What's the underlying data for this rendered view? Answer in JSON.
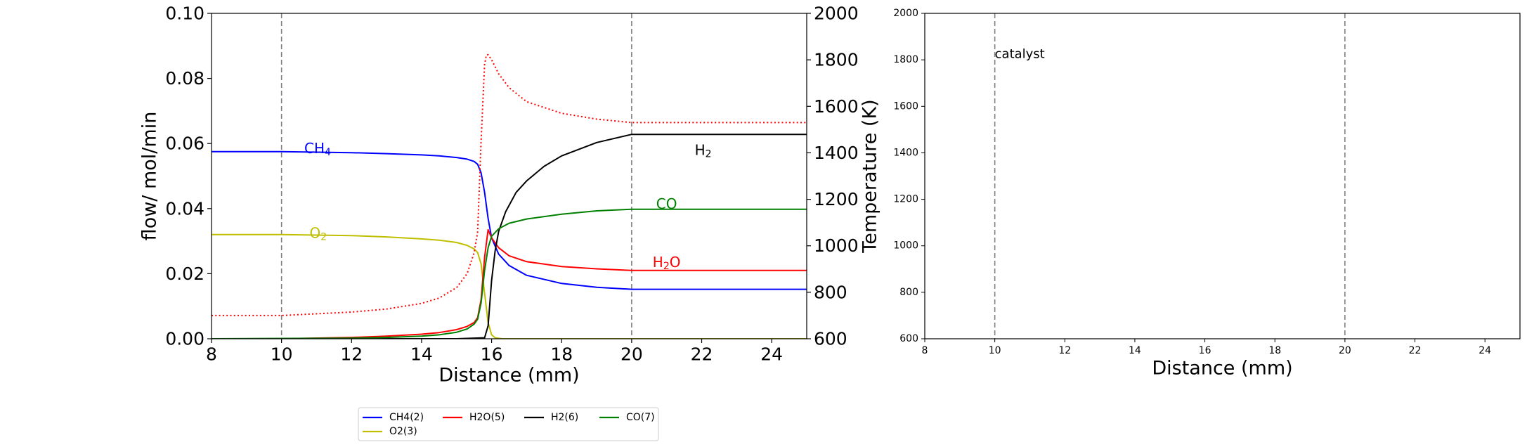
{
  "chart_data": [
    {
      "type": "line",
      "xlabel": "Distance (mm)",
      "ylabel": "flow/ mol/min",
      "y2label": "Temperature (K)",
      "xlim": [
        8,
        25
      ],
      "ylim": [
        0,
        0.1
      ],
      "y2lim": [
        600,
        2000
      ],
      "xticks": [
        "8",
        "10",
        "12",
        "14",
        "16",
        "18",
        "20",
        "22",
        "24"
      ],
      "yticks": [
        "0.00",
        "0.02",
        "0.04",
        "0.06",
        "0.08",
        "0.10"
      ],
      "y2ticks": [
        "600",
        "800",
        "1000",
        "1200",
        "1400",
        "1600",
        "1800",
        "2000"
      ],
      "vlines": [
        10,
        20
      ],
      "series": [
        {
          "name": "CH4(2)",
          "color": "#0000ff",
          "style": "solid",
          "x": [
            8,
            10,
            12,
            13,
            14,
            14.5,
            15,
            15.3,
            15.5,
            15.6,
            15.7,
            15.8,
            15.9,
            16.0,
            16.2,
            16.5,
            17,
            18,
            19,
            20,
            22,
            25
          ],
          "y": [
            0.0575,
            0.0575,
            0.0572,
            0.0569,
            0.0565,
            0.0562,
            0.0557,
            0.0552,
            0.0545,
            0.0536,
            0.051,
            0.045,
            0.037,
            0.031,
            0.026,
            0.0225,
            0.0195,
            0.017,
            0.0158,
            0.0152,
            0.0152,
            0.0152
          ]
        },
        {
          "name": "O2(3)",
          "color": "#bfbf00",
          "style": "solid",
          "x": [
            8,
            10,
            12,
            13,
            14,
            14.5,
            15,
            15.3,
            15.5,
            15.6,
            15.7,
            15.8,
            15.9,
            16.0,
            16.1,
            16.3,
            17,
            20,
            25
          ],
          "y": [
            0.032,
            0.032,
            0.0317,
            0.0313,
            0.0307,
            0.0303,
            0.0296,
            0.0287,
            0.0276,
            0.0265,
            0.023,
            0.014,
            0.005,
            0.0012,
            0.0003,
            0.0,
            0.0,
            0.0,
            0.0
          ]
        },
        {
          "name": "H2O(5)",
          "color": "#ff0000",
          "style": "solid",
          "x": [
            8,
            10,
            12,
            13,
            14,
            14.5,
            15,
            15.3,
            15.5,
            15.6,
            15.7,
            15.8,
            15.9,
            16.0,
            16.2,
            16.5,
            17,
            18,
            19,
            20,
            22,
            25
          ],
          "y": [
            0.0,
            0.0,
            0.0004,
            0.0008,
            0.0014,
            0.0019,
            0.0028,
            0.0038,
            0.005,
            0.0065,
            0.012,
            0.025,
            0.0335,
            0.031,
            0.028,
            0.0255,
            0.0237,
            0.0222,
            0.0215,
            0.021,
            0.021,
            0.021
          ]
        },
        {
          "name": "H2(6)",
          "color": "#000000",
          "style": "solid",
          "x": [
            8,
            15,
            15.8,
            15.9,
            16.0,
            16.1,
            16.2,
            16.4,
            16.7,
            17,
            17.5,
            18,
            19,
            20,
            22,
            25
          ],
          "y": [
            0.0,
            0.0,
            0.0003,
            0.004,
            0.018,
            0.027,
            0.033,
            0.039,
            0.045,
            0.0485,
            0.053,
            0.0562,
            0.0603,
            0.0628,
            0.0628,
            0.0628
          ]
        },
        {
          "name": "CO(7)",
          "color": "#008000",
          "style": "solid",
          "x": [
            8,
            12,
            13,
            14,
            14.5,
            15,
            15.3,
            15.5,
            15.6,
            15.7,
            15.8,
            15.9,
            16.0,
            16.2,
            16.5,
            17,
            18,
            19,
            20,
            22,
            25
          ],
          "y": [
            0.0,
            0.0002,
            0.0004,
            0.0008,
            0.0012,
            0.002,
            0.003,
            0.0045,
            0.006,
            0.011,
            0.021,
            0.028,
            0.0315,
            0.0338,
            0.0355,
            0.0368,
            0.0383,
            0.0393,
            0.0398,
            0.0398,
            0.0398
          ]
        },
        {
          "name": "Temperature",
          "color": "#ff0000",
          "style": "dotted",
          "axis": "y2",
          "x": [
            8,
            10,
            12,
            13,
            14,
            14.5,
            15,
            15.3,
            15.5,
            15.6,
            15.7,
            15.8,
            15.85,
            15.9,
            16.0,
            16.2,
            16.5,
            17,
            18,
            19,
            20,
            22,
            25
          ],
          "y": [
            700,
            700,
            715,
            728,
            752,
            775,
            820,
            880,
            970,
            1060,
            1450,
            1780,
            1820,
            1822,
            1800,
            1740,
            1680,
            1620,
            1570,
            1545,
            1530,
            1530,
            1530
          ]
        }
      ],
      "annotations": [
        {
          "text": "CH",
          "sub": "4",
          "x": 10.65,
          "y": 0.0585,
          "color": "#0000ff"
        },
        {
          "text": "O",
          "sub": "2",
          "x": 10.8,
          "y": 0.0325,
          "color": "#bfbf00"
        },
        {
          "text": "H",
          "sub": "2",
          "x": 21.8,
          "y": 0.058,
          "color": "#000000"
        },
        {
          "text": "CO",
          "sub": "",
          "x": 20.7,
          "y": 0.0415,
          "color": "#008000"
        },
        {
          "text": "H",
          "sub": "2",
          "x": 20.6,
          "y": 0.0235,
          "color": "#ff0000",
          "suffix": "O"
        }
      ],
      "legend": {
        "placement": "bottom",
        "entries": [
          {
            "label": "CH4(2)",
            "color": "#0000ff"
          },
          {
            "label": "H2O(5)",
            "color": "#ff0000"
          },
          {
            "label": "H2(6)",
            "color": "#000000"
          },
          {
            "label": "CO(7)",
            "color": "#008000"
          },
          {
            "label": "O2(3)",
            "color": "#bfbf00"
          }
        ]
      }
    },
    {
      "type": "line",
      "xlabel": "Distance (mm)",
      "xlim": [
        8,
        25
      ],
      "ylim": [
        600,
        2000
      ],
      "xticks": [
        "8",
        "10",
        "12",
        "14",
        "16",
        "18",
        "20",
        "22",
        "24"
      ],
      "yticks": [
        "600",
        "800",
        "1000",
        "1200",
        "1400",
        "1600",
        "1800",
        "2000"
      ],
      "vlines": [
        10,
        20
      ],
      "annotation": {
        "text": "catalyst",
        "x": 10,
        "y": 1825
      },
      "series": []
    }
  ]
}
